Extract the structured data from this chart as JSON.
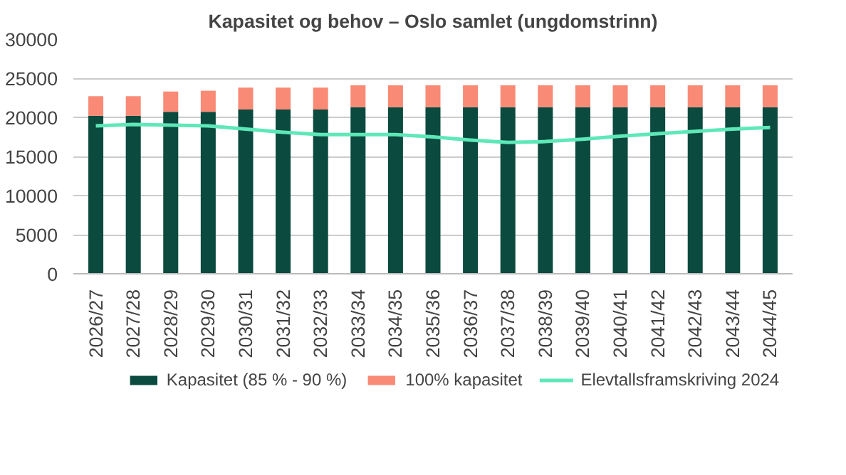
{
  "chart_data": {
    "type": "bar",
    "stacked": true,
    "title": "Kapasitet og behov – Oslo samlet (ungdomstrinn)",
    "categories": [
      "2026/27",
      "2027/28",
      "2028/29",
      "2029/30",
      "2030/31",
      "2031/32",
      "2032/33",
      "2033/34",
      "2034/35",
      "2035/36",
      "2036/37",
      "2037/38",
      "2038/39",
      "2039/40",
      "2040/41",
      "2041/42",
      "2042/43",
      "2043/44",
      "2044/45"
    ],
    "series": [
      {
        "name": "Kapasitet (85 % - 90 %)",
        "color": "#0b4a3e",
        "values": [
          20200,
          20200,
          20700,
          20700,
          21000,
          21000,
          21000,
          21300,
          21300,
          21300,
          21300,
          21300,
          21300,
          21300,
          21300,
          21300,
          21300,
          21300,
          21300
        ]
      },
      {
        "name": "100% kapasitet",
        "color": "#f98a76",
        "values": [
          2500,
          2500,
          2600,
          2700,
          2800,
          2800,
          2800,
          2800,
          2800,
          2800,
          2800,
          2800,
          2800,
          2800,
          2800,
          2800,
          2800,
          2800,
          2800
        ]
      },
      {
        "name": "Elevtallsframskriving 2024",
        "type": "line",
        "color": "#5ee8b8",
        "values": [
          18900,
          19100,
          19000,
          18900,
          18500,
          18100,
          17800,
          17800,
          17800,
          17500,
          17100,
          16800,
          16900,
          17200,
          17600,
          17900,
          18200,
          18500,
          18700
        ]
      }
    ],
    "ylim": [
      0,
      30000
    ],
    "yticks": [
      0,
      5000,
      10000,
      15000,
      20000,
      25000,
      30000
    ],
    "grid": "y",
    "legend": "bottom"
  }
}
